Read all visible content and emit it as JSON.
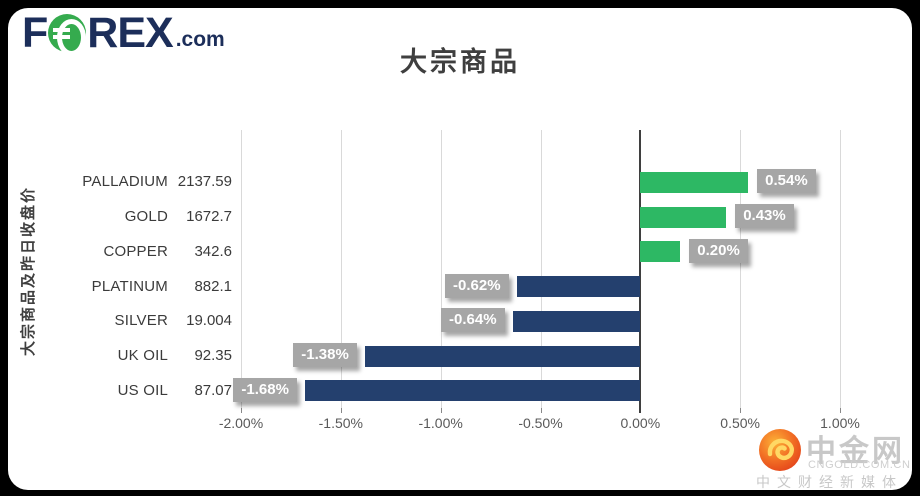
{
  "logo": {
    "part1": "F",
    "part2": "REX",
    "suffix": ".com"
  },
  "title": "大宗商品",
  "y_axis_label": "大宗商品及昨日收盘价",
  "watermark": {
    "name": "中金网",
    "domain": "CNGOLD.COM.CN",
    "tagline": "中文财经新媒体"
  },
  "chart_data": {
    "type": "bar",
    "orientation": "horizontal",
    "title": "大宗商品",
    "ylabel": "大宗商品及昨日收盘价",
    "categories": [
      "PALLADIUM",
      "GOLD",
      "COPPER",
      "PLATINUM",
      "SILVER",
      "UK OIL",
      "US OIL"
    ],
    "prices": [
      "2137.59",
      "1672.7",
      "342.6",
      "882.1",
      "19.004",
      "92.35",
      "87.07"
    ],
    "values": [
      0.54,
      0.43,
      0.2,
      -0.62,
      -0.64,
      -1.38,
      -1.68
    ],
    "value_labels": [
      "0.54%",
      "0.43%",
      "0.20%",
      "-0.62%",
      "-0.64%",
      "-1.38%",
      "-1.68%"
    ],
    "x_ticks": [
      -2.0,
      -1.5,
      -1.0,
      -0.5,
      0.0,
      0.5,
      1.0
    ],
    "x_tick_labels": [
      "-2.00%",
      "-1.50%",
      "-1.00%",
      "-0.50%",
      "0.00%",
      "0.50%",
      "1.00%"
    ],
    "xlim": [
      -2.0,
      1.0
    ],
    "grid": true,
    "legend": "none",
    "colors": {
      "positive_bar": "#2db864",
      "negative_bar": "#24406e",
      "label_box": "#a6a6a6",
      "label_text": "#ffffff",
      "gridline": "#d9d9d9",
      "zero_line": "#3f3f3f"
    }
  }
}
